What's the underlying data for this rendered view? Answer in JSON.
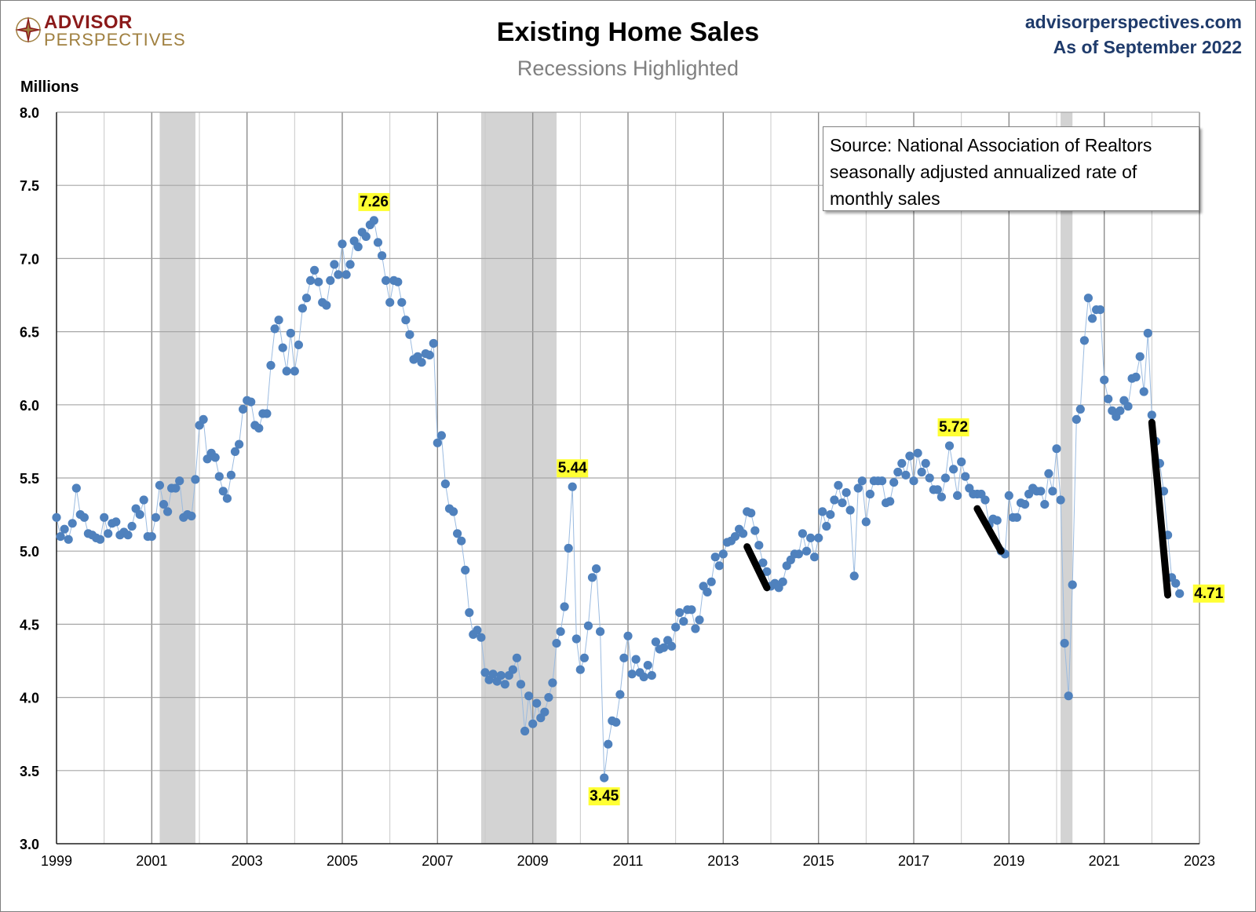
{
  "header": {
    "logo_line1": "ADVISOR",
    "logo_line2": "PERSPECTIVES",
    "site": "advisorperspectives.com",
    "as_of": "As of September 2022"
  },
  "colors": {
    "points": "#4f81bd",
    "line": "#9bbbe0",
    "recession": "#d3d3d3",
    "grid": "#a6a6a6",
    "highlight": "#ffff33",
    "trend_marks": "#000000"
  },
  "chart_data": {
    "type": "line",
    "title": "Existing Home Sales",
    "subtitle": "Recessions Highlighted",
    "ylabel": "Millions",
    "xlabel": "",
    "xlim": [
      1999,
      2023
    ],
    "ylim": [
      3.0,
      8.0
    ],
    "xticks": [
      "1999",
      "2001",
      "2003",
      "2005",
      "2007",
      "2009",
      "2011",
      "2013",
      "2015",
      "2017",
      "2019",
      "2021",
      "2023"
    ],
    "yticks": [
      "3.0",
      "3.5",
      "4.0",
      "4.5",
      "5.0",
      "5.5",
      "6.0",
      "6.5",
      "7.0",
      "7.5",
      "8.0"
    ],
    "grid": true,
    "legend": "none",
    "source_note": [
      "Source: National Association of Realtors",
      "seasonally adjusted annualized rate of",
      "monthly sales"
    ],
    "recessions": [
      {
        "start": "2001-03",
        "end": "2001-11"
      },
      {
        "start": "2007-12",
        "end": "2009-06"
      },
      {
        "start": "2020-02",
        "end": "2020-04"
      }
    ],
    "annotations": [
      {
        "date": "2005-09",
        "value": 7.26,
        "text": "7.26",
        "position": "above"
      },
      {
        "date": "2009-11",
        "value": 5.44,
        "text": "5.44",
        "position": "above"
      },
      {
        "date": "2010-07",
        "value": 3.45,
        "text": "3.45",
        "position": "below"
      },
      {
        "date": "2017-11",
        "value": 5.72,
        "text": "5.72",
        "position": "above"
      },
      {
        "date": "2022-09",
        "value": 4.71,
        "text": "4.71",
        "position": "right"
      }
    ],
    "trend_marks": [
      {
        "from": [
          "2013-07",
          5.03
        ],
        "to": [
          "2013-12",
          4.75
        ]
      },
      {
        "from": [
          "2018-05",
          5.29
        ],
        "to": [
          "2018-11",
          5.0
        ]
      },
      {
        "from": [
          "2022-01",
          5.88
        ],
        "to": [
          "2022-05",
          4.7
        ]
      }
    ],
    "series": [
      {
        "start": "1999-01",
        "values": [
          5.23,
          5.1,
          5.15,
          5.08,
          5.19,
          5.43,
          5.25,
          5.23,
          5.12,
          5.11,
          5.09,
          5.08,
          5.23,
          5.12,
          5.19,
          5.2,
          5.11,
          5.13,
          5.11,
          5.17,
          5.29,
          5.25,
          5.35,
          5.1,
          5.1,
          5.23,
          5.45,
          5.32,
          5.27,
          5.43,
          5.43,
          5.48,
          5.23,
          5.25,
          5.24,
          5.49,
          5.86,
          5.9,
          5.63,
          5.67,
          5.64,
          5.51,
          5.41,
          5.36,
          5.52,
          5.68,
          5.73,
          5.97,
          6.03,
          6.02,
          5.86,
          5.84,
          5.94,
          5.94,
          6.27,
          6.52,
          6.58,
          6.39,
          6.23,
          6.49,
          6.23,
          6.41,
          6.66,
          6.73,
          6.85,
          6.92,
          6.84,
          6.7,
          6.68,
          6.85,
          6.96,
          6.89,
          7.1,
          6.89,
          6.96,
          7.12,
          7.08,
          7.18,
          7.15,
          7.23,
          7.26,
          7.11,
          7.02,
          6.85,
          6.7,
          6.85,
          6.84,
          6.7,
          6.58,
          6.48,
          6.31,
          6.33,
          6.29,
          6.35,
          6.34,
          6.42,
          5.74,
          5.79,
          5.46,
          5.29,
          5.27,
          5.12,
          5.07,
          4.87,
          4.58,
          4.43,
          4.46,
          4.41,
          4.17,
          4.12,
          4.16,
          4.11,
          4.15,
          4.09,
          4.15,
          4.19,
          4.27,
          4.09,
          3.77,
          4.01,
          3.82,
          3.96,
          3.86,
          3.9,
          4.0,
          4.1,
          4.37,
          4.45,
          4.62,
          5.02,
          5.44,
          4.4,
          4.19,
          4.27,
          4.49,
          4.82,
          4.88,
          4.45,
          3.45,
          3.68,
          3.84,
          3.83,
          4.02,
          4.27,
          4.42,
          4.16,
          4.26,
          4.17,
          4.14,
          4.22,
          4.15,
          4.38,
          4.33,
          4.34,
          4.39,
          4.35,
          4.48,
          4.58,
          4.52,
          4.6,
          4.6,
          4.47,
          4.53,
          4.76,
          4.72,
          4.79,
          4.96,
          4.9,
          4.98,
          5.06,
          5.07,
          5.1,
          5.15,
          5.12,
          5.27,
          5.26,
          5.14,
          5.04,
          4.92,
          4.86,
          4.76,
          4.78,
          4.75,
          4.79,
          4.9,
          4.94,
          4.98,
          4.98,
          5.12,
          5.0,
          5.09,
          4.96,
          5.09,
          5.27,
          5.17,
          5.25,
          5.35,
          5.45,
          5.33,
          5.4,
          5.28,
          4.83,
          5.43,
          5.48,
          5.2,
          5.39,
          5.48,
          5.48,
          5.48,
          5.33,
          5.34,
          5.47,
          5.54,
          5.6,
          5.52,
          5.65,
          5.48,
          5.67,
          5.54,
          5.6,
          5.5,
          5.42,
          5.42,
          5.37,
          5.5,
          5.72,
          5.56,
          5.38,
          5.61,
          5.51,
          5.43,
          5.39,
          5.39,
          5.39,
          5.35,
          5.18,
          5.22,
          5.21,
          5.0,
          4.98,
          5.38,
          5.23,
          5.23,
          5.33,
          5.32,
          5.39,
          5.43,
          5.41,
          5.41,
          5.32,
          5.53,
          5.41,
          5.7,
          5.35,
          4.37,
          4.01,
          4.77,
          5.9,
          5.97,
          6.44,
          6.73,
          6.59,
          6.65,
          6.65,
          6.17,
          6.04,
          5.96,
          5.92,
          5.96,
          6.03,
          5.99,
          6.18,
          6.19,
          6.33,
          6.09,
          6.49,
          5.93,
          5.75,
          5.6,
          5.41,
          5.11,
          4.82,
          4.78,
          4.71
        ]
      }
    ]
  }
}
